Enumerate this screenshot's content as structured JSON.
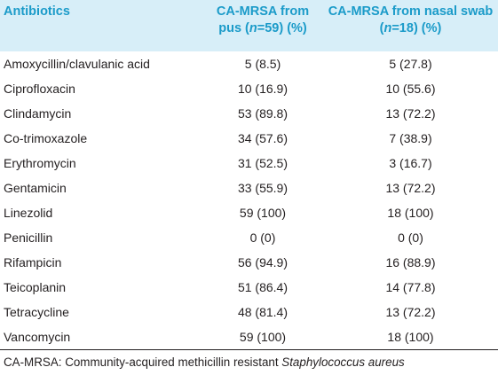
{
  "table": {
    "header": [
      [
        "Antibiotics"
      ],
      [
        "CA-MRSA from pus (",
        "n",
        "=59) (%)"
      ],
      [
        "CA-MRSA from nasal swab (",
        "n",
        "=18) (%)"
      ]
    ],
    "rows": [
      [
        "Amoxycillin/clavulanic acid",
        "5 (8.5)",
        "5 (27.8)"
      ],
      [
        "Ciprofloxacin",
        "10 (16.9)",
        "10 (55.6)"
      ],
      [
        "Clindamycin",
        "53 (89.8)",
        "13 (72.2)"
      ],
      [
        "Co-trimoxazole",
        "34 (57.6)",
        "7 (38.9)"
      ],
      [
        "Erythromycin",
        "31 (52.5)",
        "3 (16.7)"
      ],
      [
        "Gentamicin",
        "33 (55.9)",
        "13 (72.2)"
      ],
      [
        "Linezolid",
        "59 (100)",
        "18 (100)"
      ],
      [
        "Penicillin",
        "0 (0)",
        "0 (0)"
      ],
      [
        "Rifampicin",
        "56 (94.9)",
        "16 (88.9)"
      ],
      [
        "Teicoplanin",
        "51 (86.4)",
        "14 (77.8)"
      ],
      [
        "Tetracycline",
        "48 (81.4)",
        "13 (72.2)"
      ],
      [
        "Vancomycin",
        "59 (100)",
        "18 (100)"
      ]
    ],
    "footnote": [
      "CA-MRSA: Community-acquired methicillin resistant ",
      "Staphylococcus aureus"
    ]
  }
}
